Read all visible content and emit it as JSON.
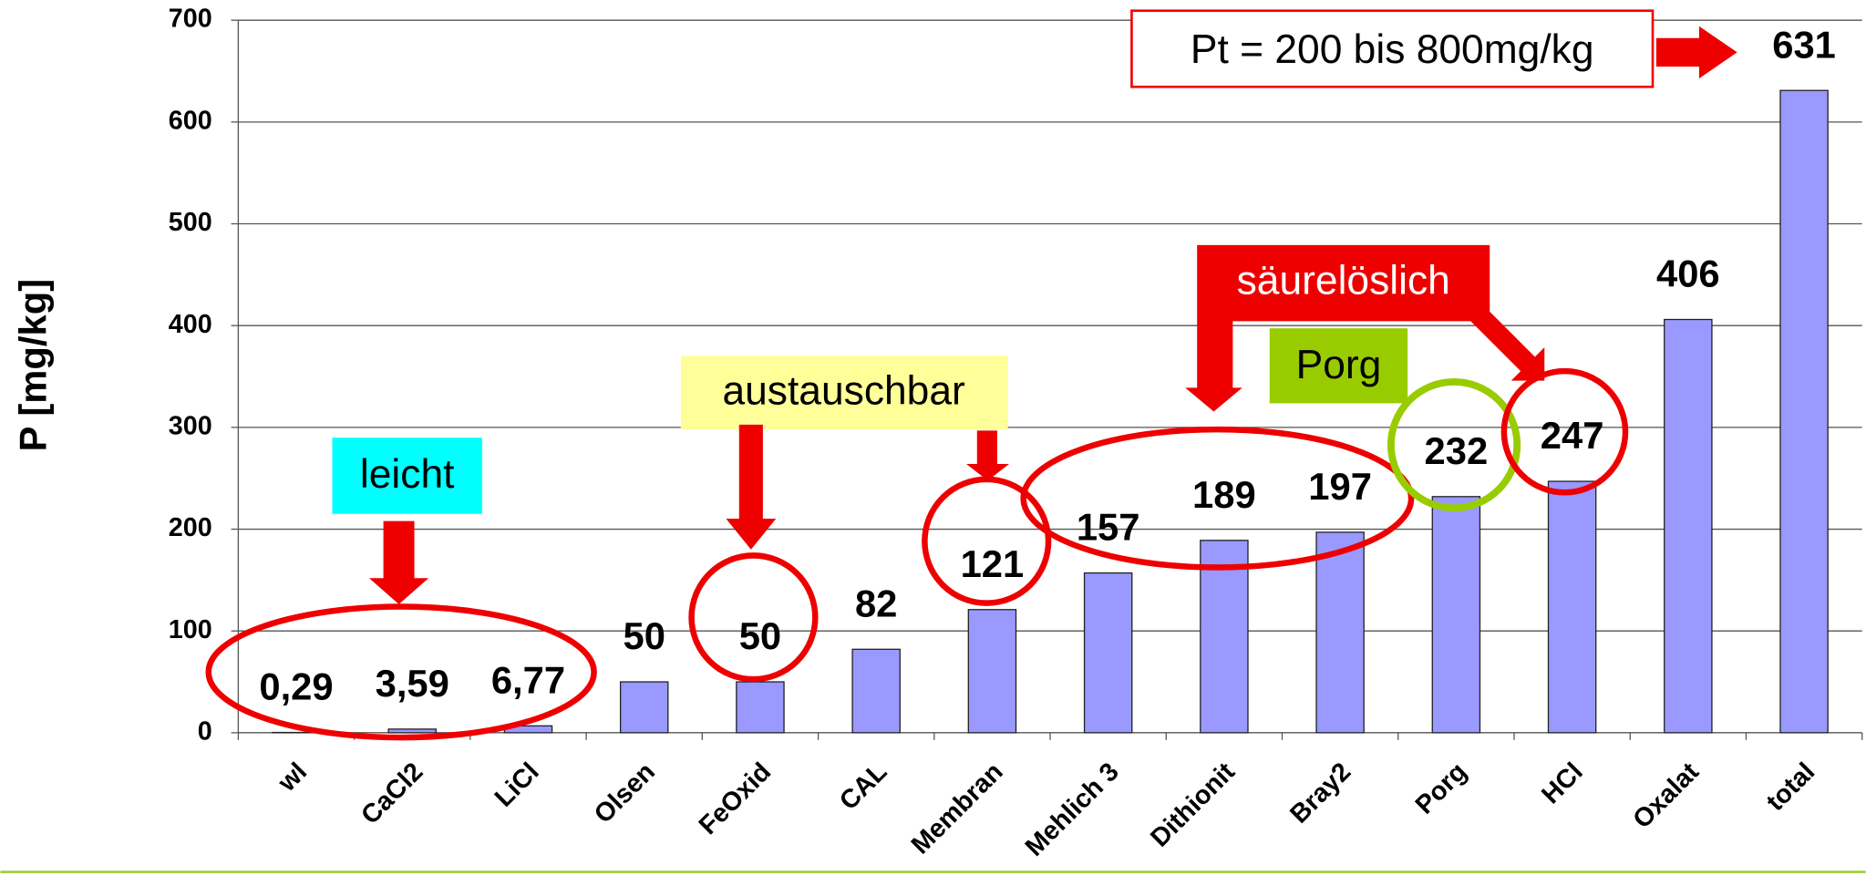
{
  "chart_data": {
    "type": "bar",
    "y_label": "P [mg/kg]",
    "categories": [
      "wl",
      "CaCl2",
      "LiCl",
      "Olsen",
      "FeOxid",
      "CAL",
      "Membran",
      "Mehlich 3",
      "Dithionit",
      "Bray2",
      "Porg",
      "HCl",
      "Oxalat",
      "total"
    ],
    "values": [
      0.29,
      3.59,
      6.77,
      50,
      50,
      82,
      121,
      157,
      189,
      197,
      232,
      247,
      406,
      631
    ],
    "value_labels": [
      "0,29",
      "3,59",
      "6,77",
      "50",
      "50",
      "82",
      "121",
      "157",
      "189",
      "197",
      "232",
      "247",
      "406",
      "631"
    ],
    "color": "#9999ff",
    "ylim": [
      0,
      700
    ],
    "yticks": [
      0,
      100,
      200,
      300,
      400,
      500,
      600,
      700
    ],
    "grid": true,
    "annotations": [
      "Pt = 200 bis 800mg/kg",
      "leicht",
      "austauschbar",
      "säurelöslich",
      "Porg"
    ]
  }
}
